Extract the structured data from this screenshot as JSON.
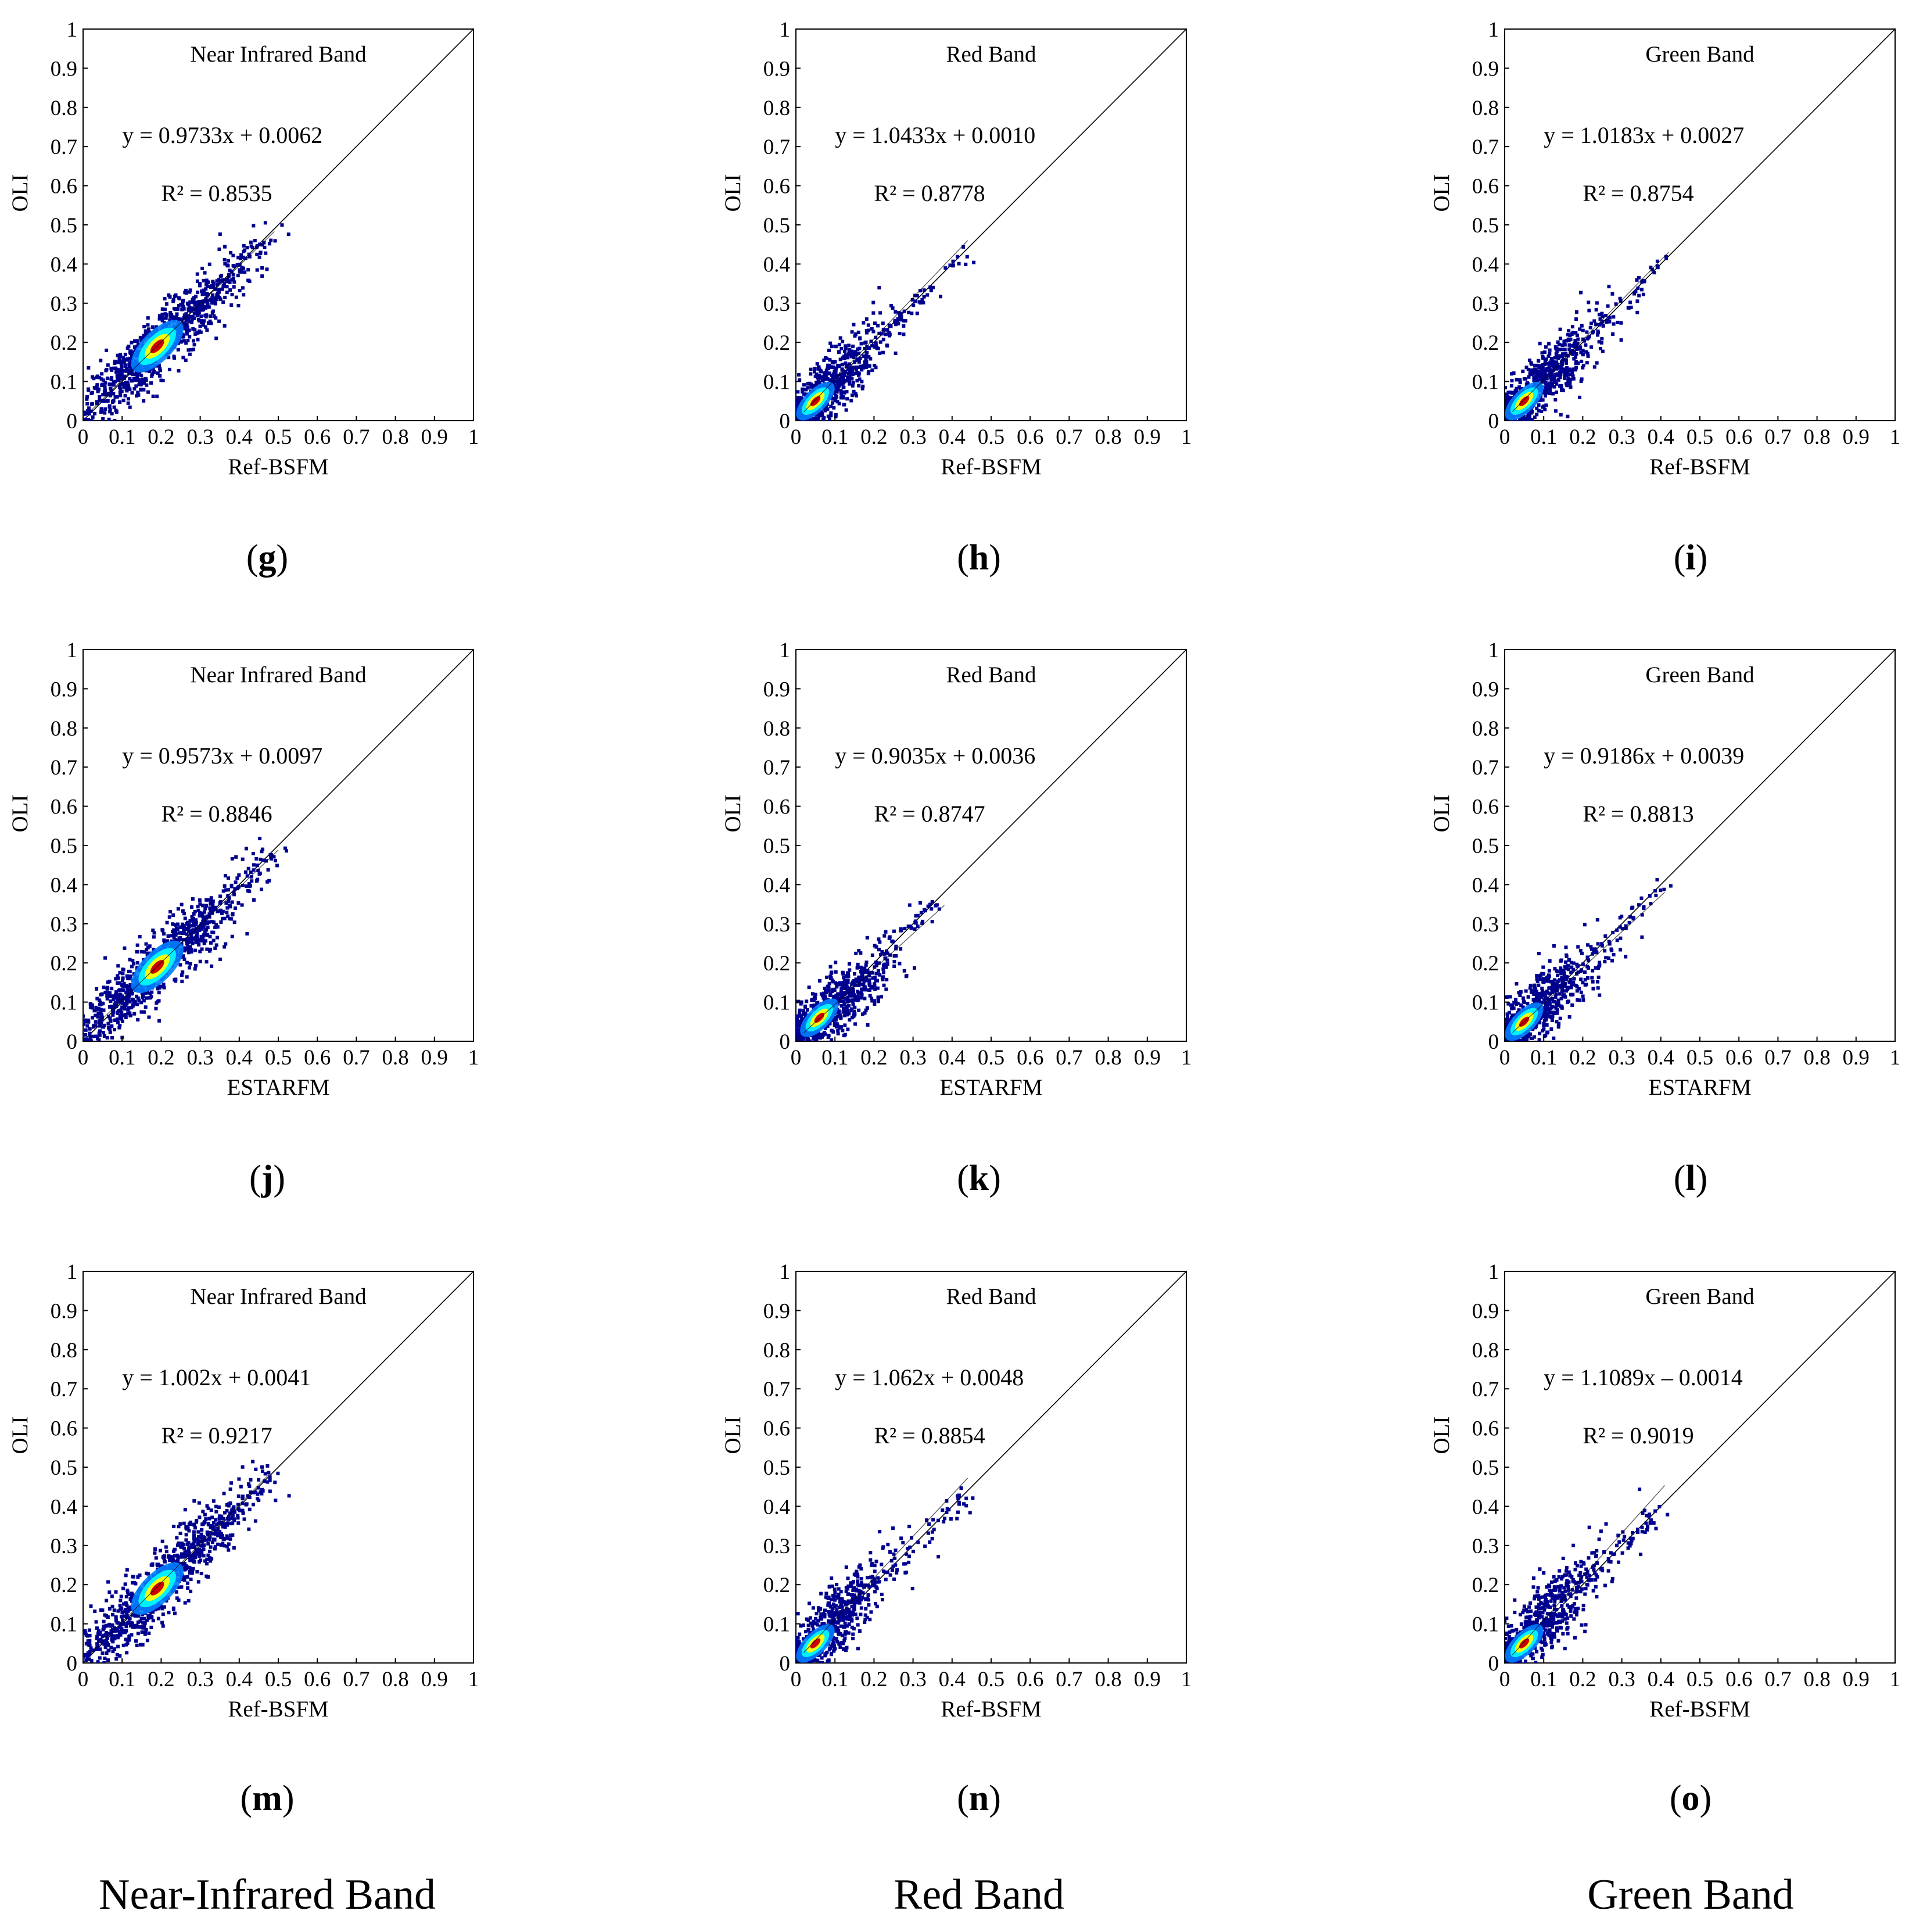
{
  "figure": {
    "column_titles": [
      "Near-Infrared Band",
      "Red Band",
      "Green Band"
    ]
  },
  "chart_data": [
    {
      "type": "scatter",
      "panel": "g",
      "title": "Near Infrared Band",
      "xlabel": "Ref-BSFM",
      "ylabel": "OLI",
      "equation": "y = 0.9733x + 0.0062",
      "r2": "R² = 0.8535",
      "slope": 0.9733,
      "intercept": 0.0062,
      "xlim": [
        0,
        1
      ],
      "ylim": [
        0,
        1
      ],
      "ticks": [
        0,
        0.1,
        0.2,
        0.3,
        0.4,
        0.5,
        0.6,
        0.7,
        0.8,
        0.9,
        1
      ],
      "reference_line": "1:1",
      "density_center": [
        0.19,
        0.19
      ],
      "data_max": 0.49
    },
    {
      "type": "scatter",
      "panel": "h",
      "title": "Red Band",
      "xlabel": "Ref-BSFM",
      "ylabel": "OLI",
      "equation": "y = 1.0433x + 0.0010",
      "r2": "R² = 0.8778",
      "slope": 1.0433,
      "intercept": 0.001,
      "xlim": [
        0,
        1
      ],
      "ylim": [
        0,
        1
      ],
      "ticks": [
        0,
        0.1,
        0.2,
        0.3,
        0.4,
        0.5,
        0.6,
        0.7,
        0.8,
        0.9,
        1
      ],
      "reference_line": "1:1",
      "density_center": [
        0.05,
        0.05
      ],
      "data_max": 0.44
    },
    {
      "type": "scatter",
      "panel": "i",
      "title": "Green Band",
      "xlabel": "Ref-BSFM",
      "ylabel": "OLI",
      "equation": "y = 1.0183x + 0.0027",
      "r2": "R² = 0.8754",
      "slope": 1.0183,
      "intercept": 0.0027,
      "xlim": [
        0,
        1
      ],
      "ylim": [
        0,
        1
      ],
      "ticks": [
        0,
        0.1,
        0.2,
        0.3,
        0.4,
        0.5,
        0.6,
        0.7,
        0.8,
        0.9,
        1
      ],
      "reference_line": "1:1",
      "density_center": [
        0.05,
        0.05
      ],
      "data_max": 0.42
    },
    {
      "type": "scatter",
      "panel": "j",
      "title": "Near Infrared Band",
      "xlabel": "ESTARFM",
      "ylabel": "OLI",
      "equation": "y = 0.9573x + 0.0097",
      "r2": "R² = 0.8846",
      "slope": 0.9573,
      "intercept": 0.0097,
      "xlim": [
        0,
        1
      ],
      "ylim": [
        0,
        1
      ],
      "ticks": [
        0,
        0.1,
        0.2,
        0.3,
        0.4,
        0.5,
        0.6,
        0.7,
        0.8,
        0.9,
        1
      ],
      "reference_line": "1:1",
      "density_center": [
        0.19,
        0.19
      ],
      "data_max": 0.5
    },
    {
      "type": "scatter",
      "panel": "k",
      "title": "Red Band",
      "xlabel": "ESTARFM",
      "ylabel": "OLI",
      "equation": "y = 0.9035x + 0.0036",
      "r2": "R² = 0.8747",
      "slope": 0.9035,
      "intercept": 0.0036,
      "xlim": [
        0,
        1
      ],
      "ylim": [
        0,
        1
      ],
      "ticks": [
        0,
        0.1,
        0.2,
        0.3,
        0.4,
        0.5,
        0.6,
        0.7,
        0.8,
        0.9,
        1
      ],
      "reference_line": "1:1",
      "density_center": [
        0.06,
        0.06
      ],
      "data_max": 0.38
    },
    {
      "type": "scatter",
      "panel": "l",
      "title": "Green Band",
      "xlabel": "ESTARFM",
      "ylabel": "OLI",
      "equation": "y = 0.9186x + 0.0039",
      "r2": "R² = 0.8813",
      "slope": 0.9186,
      "intercept": 0.0039,
      "xlim": [
        0,
        1
      ],
      "ylim": [
        0,
        1
      ],
      "ticks": [
        0,
        0.1,
        0.2,
        0.3,
        0.4,
        0.5,
        0.6,
        0.7,
        0.8,
        0.9,
        1
      ],
      "reference_line": "1:1",
      "density_center": [
        0.05,
        0.05
      ],
      "data_max": 0.41
    },
    {
      "type": "scatter",
      "panel": "m",
      "title": "Near Infrared Band",
      "xlabel": "Ref-BSFM",
      "ylabel": "OLI",
      "equation": "y = 1.002x + 0.0041",
      "r2": "R² = 0.9217",
      "slope": 1.002,
      "intercept": 0.0041,
      "xlim": [
        0,
        1
      ],
      "ylim": [
        0,
        1
      ],
      "ticks": [
        0,
        0.1,
        0.2,
        0.3,
        0.4,
        0.5,
        0.6,
        0.7,
        0.8,
        0.9,
        1
      ],
      "reference_line": "1:1",
      "density_center": [
        0.19,
        0.19
      ],
      "data_max": 0.48
    },
    {
      "type": "scatter",
      "panel": "n",
      "title": "Red Band",
      "xlabel": "Ref-BSFM",
      "ylabel": "OLI",
      "equation": "y = 1.062x + 0.0048",
      "r2": "R² = 0.8854",
      "slope": 1.062,
      "intercept": 0.0048,
      "xlim": [
        0,
        1
      ],
      "ylim": [
        0,
        1
      ],
      "ticks": [
        0,
        0.1,
        0.2,
        0.3,
        0.4,
        0.5,
        0.6,
        0.7,
        0.8,
        0.9,
        1
      ],
      "reference_line": "1:1",
      "density_center": [
        0.05,
        0.05
      ],
      "data_max": 0.44
    },
    {
      "type": "scatter",
      "panel": "o",
      "title": "Green Band",
      "xlabel": "Ref-BSFM",
      "ylabel": "OLI",
      "equation": "y = 1.1089x – 0.0014",
      "r2": "R² = 0.9019",
      "slope": 1.1089,
      "intercept": -0.0014,
      "xlim": [
        0,
        1
      ],
      "ylim": [
        0,
        1
      ],
      "ticks": [
        0,
        0.1,
        0.2,
        0.3,
        0.4,
        0.5,
        0.6,
        0.7,
        0.8,
        0.9,
        1
      ],
      "reference_line": "1:1",
      "density_center": [
        0.05,
        0.05
      ],
      "data_max": 0.41
    }
  ],
  "colors": {
    "scatter_low": "#00008f",
    "scatter_mid": "#0080ff",
    "scatter_cyan": "#00ffff",
    "scatter_yellow": "#ffff00",
    "scatter_high": "#cc0000",
    "axis": "#000000"
  }
}
